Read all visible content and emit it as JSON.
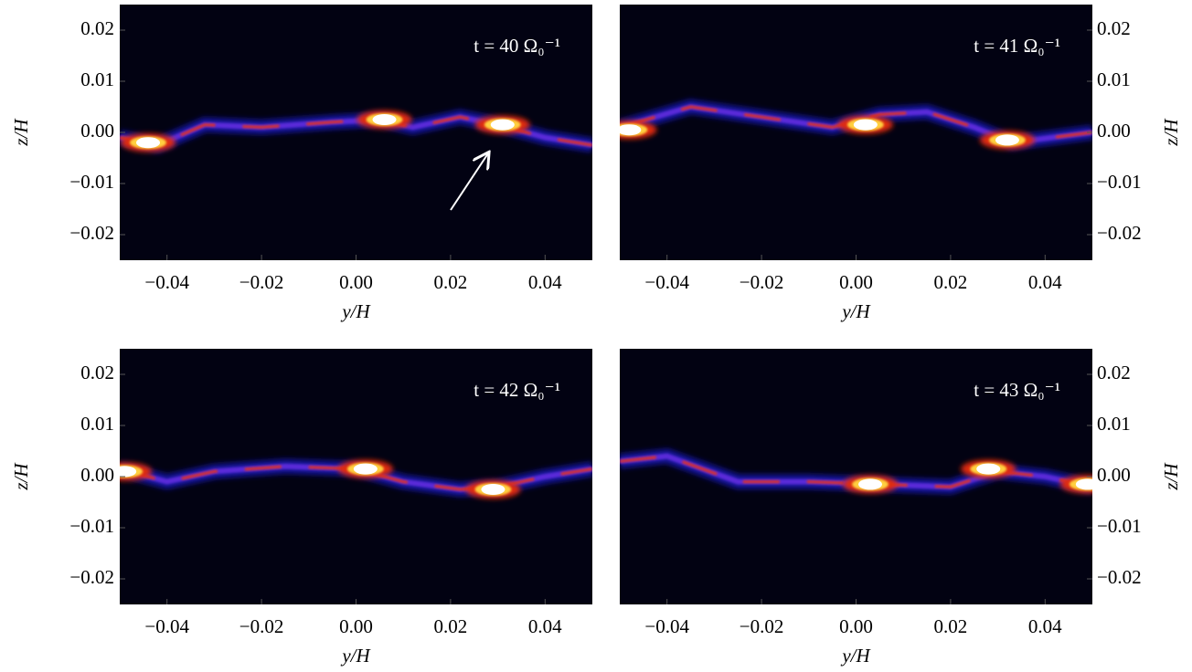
{
  "chart_data": [
    {
      "type": "image",
      "annotation": "t = 40 Ω₀⁻¹",
      "xlabel": "y/H",
      "ylabel": "z/H",
      "yaxis_side": "left",
      "xlim": [
        -0.05,
        0.05
      ],
      "ylim": [
        -0.025,
        0.025
      ],
      "xticks": [
        {
          "value": -0.04,
          "label": "−0.04"
        },
        {
          "value": -0.02,
          "label": "−0.02"
        },
        {
          "value": 0,
          "label": "0.00"
        },
        0.02,
        0.04
      ],
      "yticks": [
        0.02,
        0.01,
        {
          "value": 0,
          "label": "0.00"
        },
        {
          "value": -0.01,
          "label": "−0.01"
        },
        {
          "value": -0.02,
          "label": "−0.02"
        }
      ]
    },
    {
      "type": "image",
      "annotation": "t = 41 Ω₀⁻¹",
      "xlabel": "y/H",
      "ylabel": "z/H",
      "yaxis_side": "right",
      "xlim": [
        -0.05,
        0.05
      ],
      "ylim": [
        -0.025,
        0.025
      ],
      "xticks": [
        {
          "value": -0.04,
          "label": "−0.04"
        },
        {
          "value": -0.02,
          "label": "−0.02"
        },
        {
          "value": 0,
          "label": "0.00"
        },
        0.02,
        0.04
      ],
      "yticks": [
        0.02,
        0.01,
        {
          "value": 0,
          "label": "0.00"
        },
        {
          "value": -0.01,
          "label": "−0.01"
        },
        {
          "value": -0.02,
          "label": "−0.02"
        }
      ]
    },
    {
      "type": "image",
      "annotation": "t = 42 Ω₀⁻¹",
      "xlabel": "y/H",
      "ylabel": "z/H",
      "yaxis_side": "left",
      "xlim": [
        -0.05,
        0.05
      ],
      "ylim": [
        -0.025,
        0.025
      ],
      "xticks": [
        {
          "value": -0.04,
          "label": "−0.04"
        },
        {
          "value": -0.02,
          "label": "−0.02"
        },
        {
          "value": 0,
          "label": "0.00"
        },
        0.02,
        0.04
      ],
      "yticks": [
        0.02,
        0.01,
        {
          "value": 0,
          "label": "0.00"
        },
        {
          "value": -0.01,
          "label": "−0.01"
        },
        {
          "value": -0.02,
          "label": "−0.02"
        }
      ]
    },
    {
      "type": "image",
      "annotation": "t = 43 Ω₀⁻¹",
      "xlabel": "y/H",
      "ylabel": "z/H",
      "yaxis_side": "right",
      "xlim": [
        -0.05,
        0.05
      ],
      "ylim": [
        -0.025,
        0.025
      ],
      "xticks": [
        {
          "value": -0.04,
          "label": "−0.04"
        },
        {
          "value": -0.02,
          "label": "−0.02"
        },
        {
          "value": 0,
          "label": "0.00"
        },
        0.02,
        0.04
      ],
      "yticks": [
        0.02,
        0.01,
        {
          "value": 0,
          "label": "0.00"
        },
        {
          "value": -0.01,
          "label": "−0.01"
        },
        {
          "value": -0.02,
          "label": "−0.02"
        }
      ]
    }
  ]
}
